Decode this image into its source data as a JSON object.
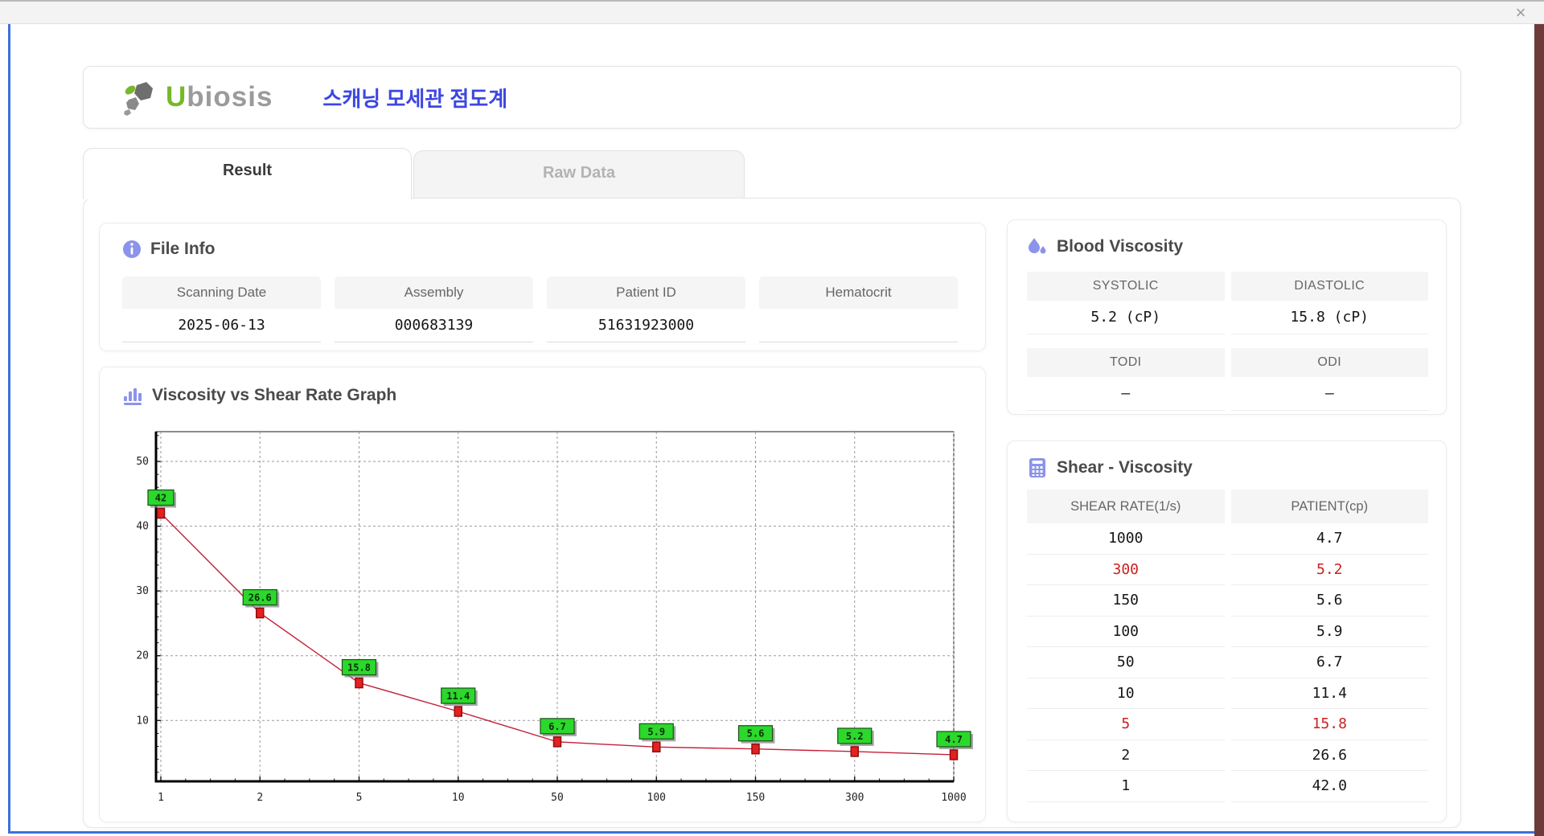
{
  "window": {
    "close_glyph": "×"
  },
  "header": {
    "logo_green": "U",
    "logo_gray": "biosis",
    "app_title_ko": "스캐닝 모세관 점도계"
  },
  "tabs": {
    "result": "Result",
    "raw_data": "Raw Data"
  },
  "file_info": {
    "title": "File Info",
    "fields": [
      {
        "label": "Scanning Date",
        "value": "2025-06-13"
      },
      {
        "label": "Assembly",
        "value": "000683139"
      },
      {
        "label": "Patient ID",
        "value": "51631923000"
      },
      {
        "label": "Hematocrit",
        "value": ""
      }
    ]
  },
  "graph_section": {
    "title": "Viscosity vs Shear Rate Graph"
  },
  "blood_viscosity": {
    "title": "Blood Viscosity",
    "row1": {
      "h1": "SYSTOLIC",
      "h2": "DIASTOLIC",
      "v1": "5.2 (cP)",
      "v2": "15.8 (cP)"
    },
    "row2": {
      "h1": "TODI",
      "h2": "ODI",
      "v1": "–",
      "v2": "–"
    }
  },
  "shear_viscosity": {
    "title": "Shear - Viscosity",
    "col1": "SHEAR RATE(1/s)",
    "col2": "PATIENT(cp)",
    "rows": [
      {
        "shear_rate": "1000",
        "patient": "4.7",
        "highlight": false
      },
      {
        "shear_rate": "300",
        "patient": "5.2",
        "highlight": true
      },
      {
        "shear_rate": "150",
        "patient": "5.6",
        "highlight": false
      },
      {
        "shear_rate": "100",
        "patient": "5.9",
        "highlight": false
      },
      {
        "shear_rate": "50",
        "patient": "6.7",
        "highlight": false
      },
      {
        "shear_rate": "10",
        "patient": "11.4",
        "highlight": false
      },
      {
        "shear_rate": "5",
        "patient": "15.8",
        "highlight": true
      },
      {
        "shear_rate": "2",
        "patient": "26.6",
        "highlight": false
      },
      {
        "shear_rate": "1",
        "patient": "42.0",
        "highlight": false
      }
    ]
  },
  "chart_data": {
    "type": "line",
    "title": "Viscosity vs Shear Rate Graph",
    "x_scale": "categorical (log-spaced shear rates)",
    "categories": [
      "1",
      "2",
      "5",
      "10",
      "50",
      "100",
      "150",
      "300",
      "1000"
    ],
    "values": [
      42,
      26.6,
      15.8,
      11.4,
      6.7,
      5.9,
      5.6,
      5.2,
      4.7
    ],
    "point_labels": [
      "42",
      "26.6",
      "15.8",
      "11.4",
      "6.7",
      "5.9",
      "5.6",
      "5.2",
      "4.7"
    ],
    "xlabel": "",
    "ylabel": "",
    "y_ticks": [
      10,
      20,
      30,
      40,
      50
    ],
    "ylim": [
      0.6,
      54.6
    ],
    "grid": true,
    "legend": false,
    "line_color": "#c42038",
    "marker_color": "#e42020",
    "marker_border": "#8d0f0f",
    "label_bg": "#2bd82b",
    "label_border": "#1d4d1d"
  },
  "colors": {
    "accent_periwinkle": "#8b93ea",
    "title_blue": "#3d47e0",
    "logo_green": "#76b82a",
    "highlight_red": "#cc2020",
    "window_border_blue": "#3a72d8"
  }
}
